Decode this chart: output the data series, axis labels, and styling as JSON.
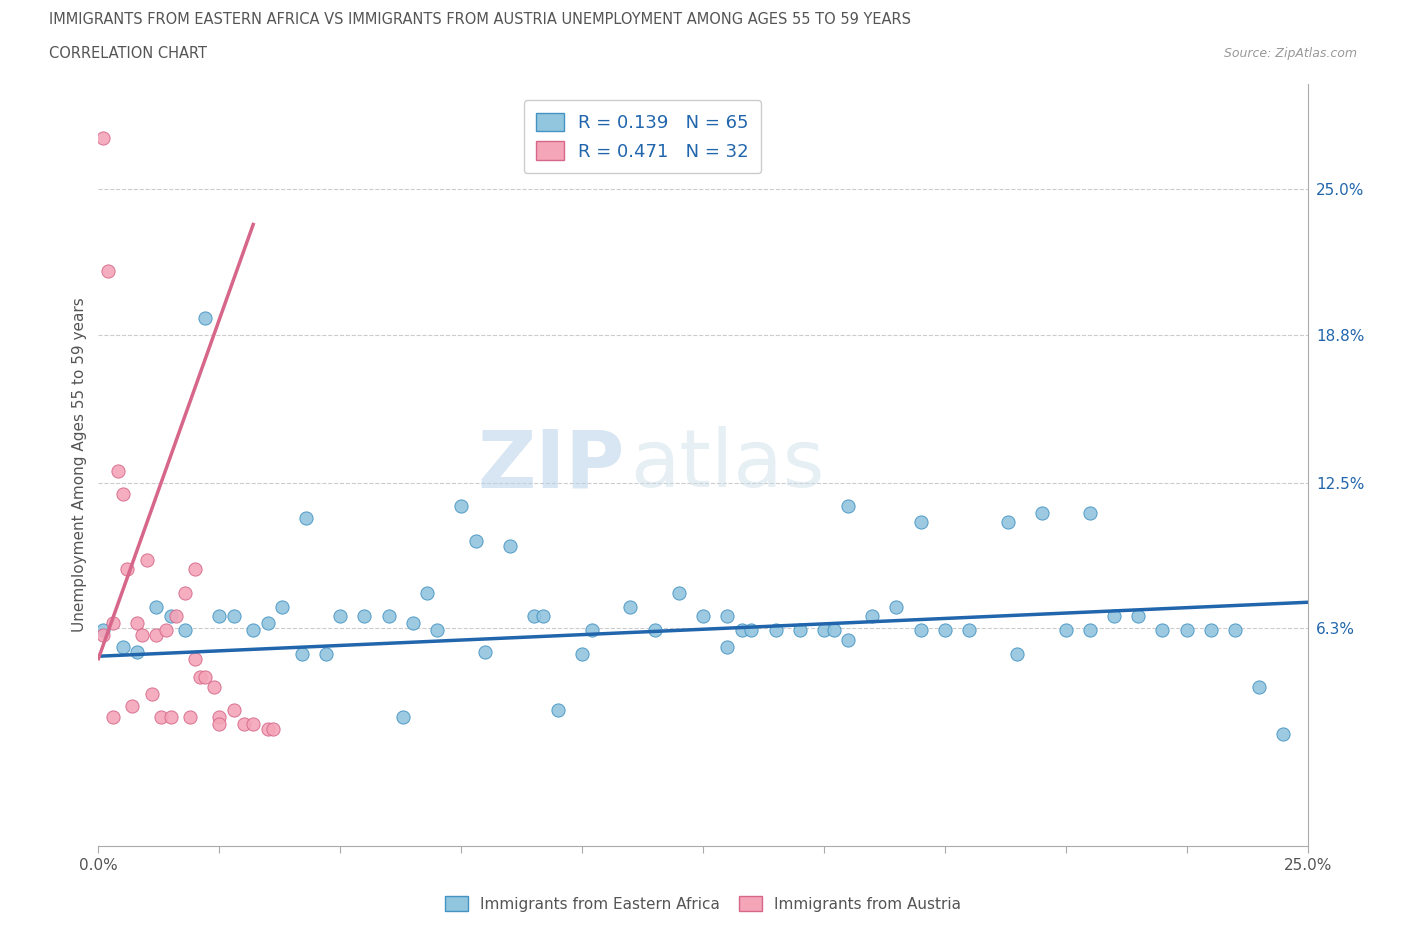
{
  "title_line1": "IMMIGRANTS FROM EASTERN AFRICA VS IMMIGRANTS FROM AUSTRIA UNEMPLOYMENT AMONG AGES 55 TO 59 YEARS",
  "title_line2": "CORRELATION CHART",
  "source_text": "Source: ZipAtlas.com",
  "ylabel": "Unemployment Among Ages 55 to 59 years",
  "xlim": [
    0.0,
    0.25
  ],
  "ylim": [
    -0.03,
    0.295
  ],
  "y_tick_vals_right": [
    0.063,
    0.125,
    0.188,
    0.25
  ],
  "y_tick_labels_right": [
    "6.3%",
    "12.5%",
    "18.8%",
    "25.0%"
  ],
  "legend_label1": "Immigrants from Eastern Africa",
  "legend_label2": "Immigrants from Austria",
  "r1": "0.139",
  "n1": "65",
  "r2": "0.471",
  "n2": "32",
  "color_blue": "#92c5de",
  "color_blue_edge": "#4393c3",
  "color_blue_line": "#2166ac",
  "color_pink": "#f4a5b8",
  "color_pink_edge": "#d6678a",
  "color_pink_line": "#d6678a",
  "watermark_zip": "ZIP",
  "watermark_atlas": "atlas",
  "blue_scatter_x": [
    0.022,
    0.043,
    0.001,
    0.005,
    0.008,
    0.012,
    0.015,
    0.018,
    0.025,
    0.028,
    0.032,
    0.035,
    0.038,
    0.042,
    0.047,
    0.05,
    0.055,
    0.06,
    0.063,
    0.065,
    0.068,
    0.07,
    0.075,
    0.078,
    0.08,
    0.085,
    0.09,
    0.092,
    0.095,
    0.1,
    0.102,
    0.11,
    0.115,
    0.12,
    0.125,
    0.13,
    0.133,
    0.135,
    0.14,
    0.145,
    0.15,
    0.152,
    0.155,
    0.16,
    0.165,
    0.17,
    0.175,
    0.18,
    0.188,
    0.19,
    0.195,
    0.2,
    0.205,
    0.21,
    0.215,
    0.22,
    0.225,
    0.23,
    0.235,
    0.24,
    0.245,
    0.17,
    0.205,
    0.155,
    0.13
  ],
  "blue_scatter_y": [
    0.195,
    0.11,
    0.062,
    0.055,
    0.053,
    0.072,
    0.068,
    0.062,
    0.068,
    0.068,
    0.062,
    0.065,
    0.072,
    0.052,
    0.052,
    0.068,
    0.068,
    0.068,
    0.025,
    0.065,
    0.078,
    0.062,
    0.115,
    0.1,
    0.053,
    0.098,
    0.068,
    0.068,
    0.028,
    0.052,
    0.062,
    0.072,
    0.062,
    0.078,
    0.068,
    0.055,
    0.062,
    0.062,
    0.062,
    0.062,
    0.062,
    0.062,
    0.058,
    0.068,
    0.072,
    0.108,
    0.062,
    0.062,
    0.108,
    0.052,
    0.112,
    0.062,
    0.062,
    0.068,
    0.068,
    0.062,
    0.062,
    0.062,
    0.062,
    0.038,
    0.018,
    0.062,
    0.112,
    0.115,
    0.068
  ],
  "pink_scatter_x": [
    0.001,
    0.001,
    0.002,
    0.003,
    0.003,
    0.004,
    0.005,
    0.006,
    0.007,
    0.008,
    0.009,
    0.01,
    0.011,
    0.012,
    0.013,
    0.014,
    0.015,
    0.016,
    0.018,
    0.019,
    0.02,
    0.021,
    0.022,
    0.024,
    0.025,
    0.028,
    0.03,
    0.032,
    0.035,
    0.036,
    0.02,
    0.025
  ],
  "pink_scatter_y": [
    0.272,
    0.06,
    0.215,
    0.065,
    0.025,
    0.13,
    0.12,
    0.088,
    0.03,
    0.065,
    0.06,
    0.092,
    0.035,
    0.06,
    0.025,
    0.062,
    0.025,
    0.068,
    0.078,
    0.025,
    0.088,
    0.042,
    0.042,
    0.038,
    0.025,
    0.028,
    0.022,
    0.022,
    0.02,
    0.02,
    0.05,
    0.022
  ],
  "blue_trend_x": [
    0.0,
    0.25
  ],
  "blue_trend_y": [
    0.051,
    0.074
  ],
  "pink_trend_x": [
    0.0,
    0.032
  ],
  "pink_trend_y": [
    0.05,
    0.235
  ]
}
